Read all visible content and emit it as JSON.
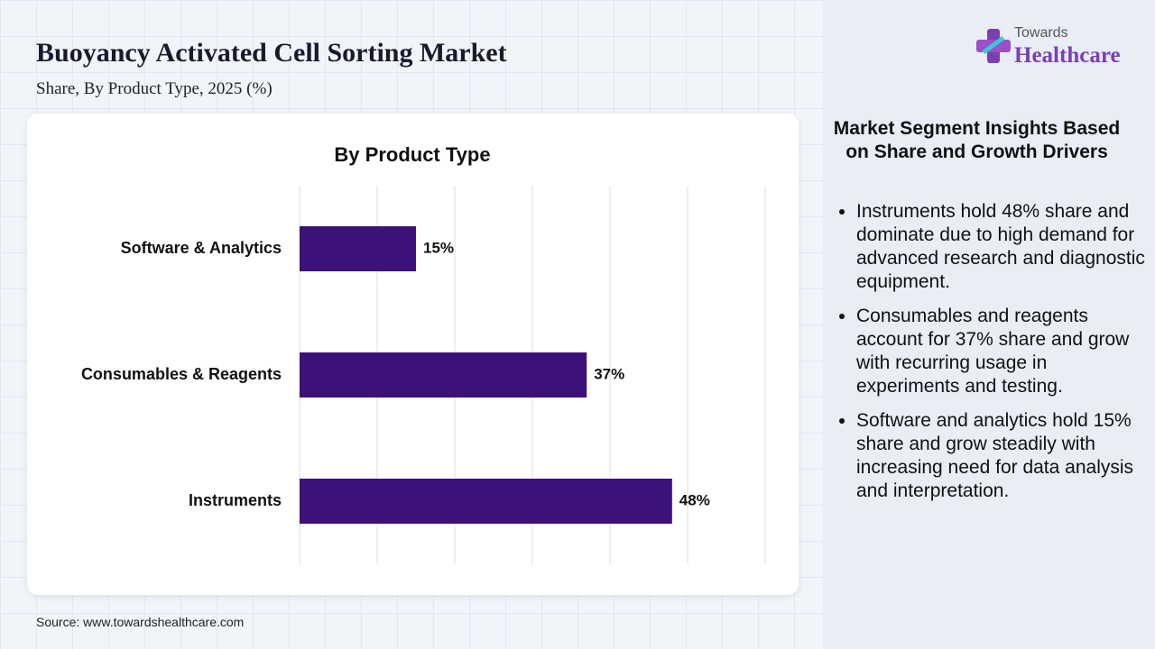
{
  "header": {
    "title": "Buoyancy Activated Cell Sorting Market",
    "subtitle": "Share, By Product Type, 2025 (%)"
  },
  "logo": {
    "top": "Towards",
    "bottom": "Healthcare"
  },
  "chart_data": {
    "type": "hbar",
    "title": "By Product Type",
    "categories": [
      "Software & Analytics",
      "Consumables & Reagents",
      "Instruments"
    ],
    "values": [
      15,
      37,
      48
    ],
    "value_labels": [
      "15%",
      "37%",
      "48%"
    ],
    "color": "#3d1278",
    "xlim": [
      0,
      60
    ],
    "xticks": [
      0,
      10,
      20,
      30,
      40,
      50,
      60
    ],
    "grid": true
  },
  "insights": {
    "title": "Market Segment Insights Based on Share and Growth Drivers",
    "bullets": [
      "Instruments hold 48% share and dominate due to high demand for advanced research and diagnostic equipment.",
      "Consumables and reagents account for 37% share and grow with recurring usage in experiments and testing.",
      "Software and analytics hold 15% share and grow steadily with increasing need for data analysis and interpretation."
    ]
  },
  "source": "Source: www.towardshealthcare.com"
}
